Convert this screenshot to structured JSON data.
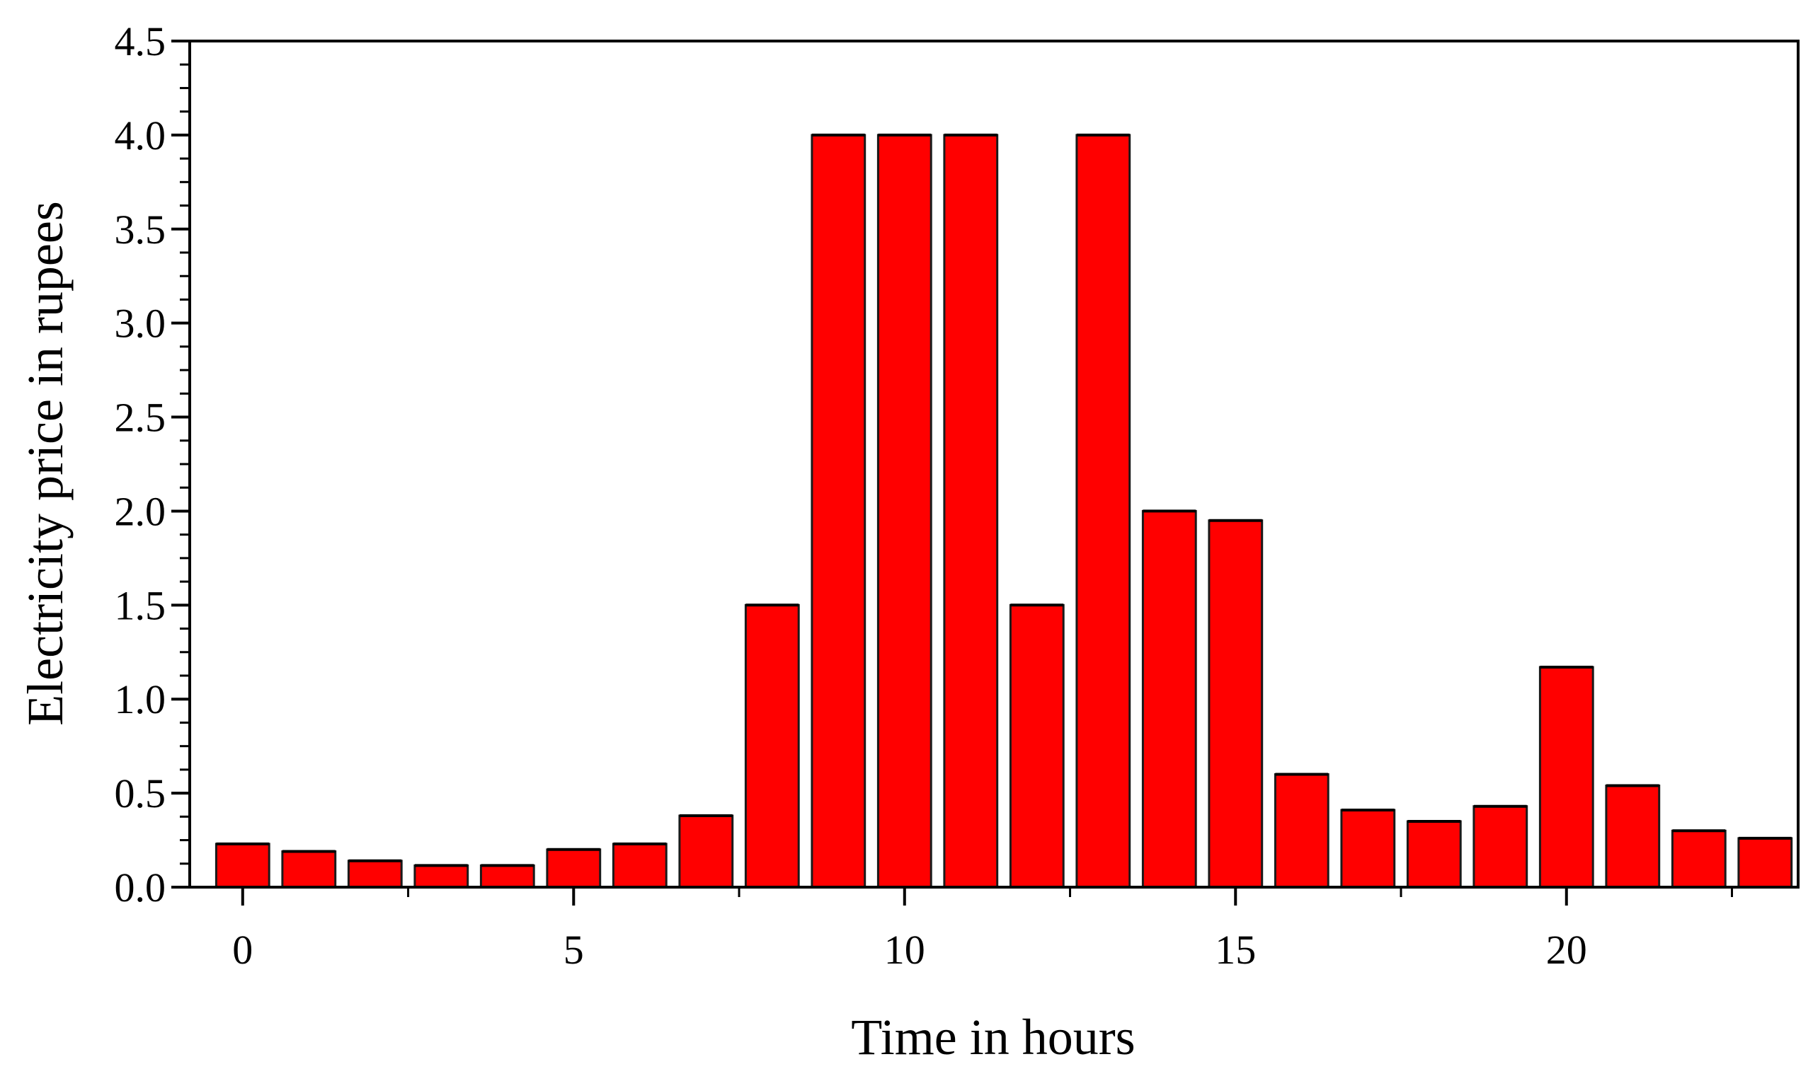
{
  "chart_data": {
    "type": "bar",
    "title": "",
    "xlabel": "Time in hours",
    "ylabel": "Electricity price in rupees",
    "x": [
      0,
      1,
      2,
      3,
      4,
      5,
      6,
      7,
      8,
      9,
      10,
      11,
      12,
      13,
      14,
      15,
      16,
      17,
      18,
      19,
      20,
      21,
      22,
      23
    ],
    "values": [
      0.23,
      0.19,
      0.14,
      0.115,
      0.115,
      0.2,
      0.23,
      0.38,
      1.5,
      4.0,
      4.0,
      4.0,
      1.5,
      4.0,
      2.0,
      1.95,
      0.6,
      0.41,
      0.35,
      0.43,
      1.17,
      0.54,
      0.3,
      0.26
    ],
    "xlim": [
      -0.8,
      23.5
    ],
    "ylim": [
      0,
      4.5
    ],
    "x_ticks": [
      0,
      5,
      10,
      15,
      20
    ],
    "x_tick_labels": [
      "0",
      "5",
      "10",
      "15",
      "20"
    ],
    "y_ticks": [
      0,
      0.5,
      1.0,
      1.5,
      2.0,
      2.5,
      3.0,
      3.5,
      4.0,
      4.5
    ],
    "y_tick_labels": [
      "0.0",
      "0.5",
      "1.0",
      "1.5",
      "2.0",
      "2.5",
      "3.0",
      "3.5",
      "4.0",
      "4.5"
    ],
    "bar_color": "#ff0000",
    "bar_edge_color": "#1a1a1a",
    "grid": false,
    "legend": "none"
  }
}
